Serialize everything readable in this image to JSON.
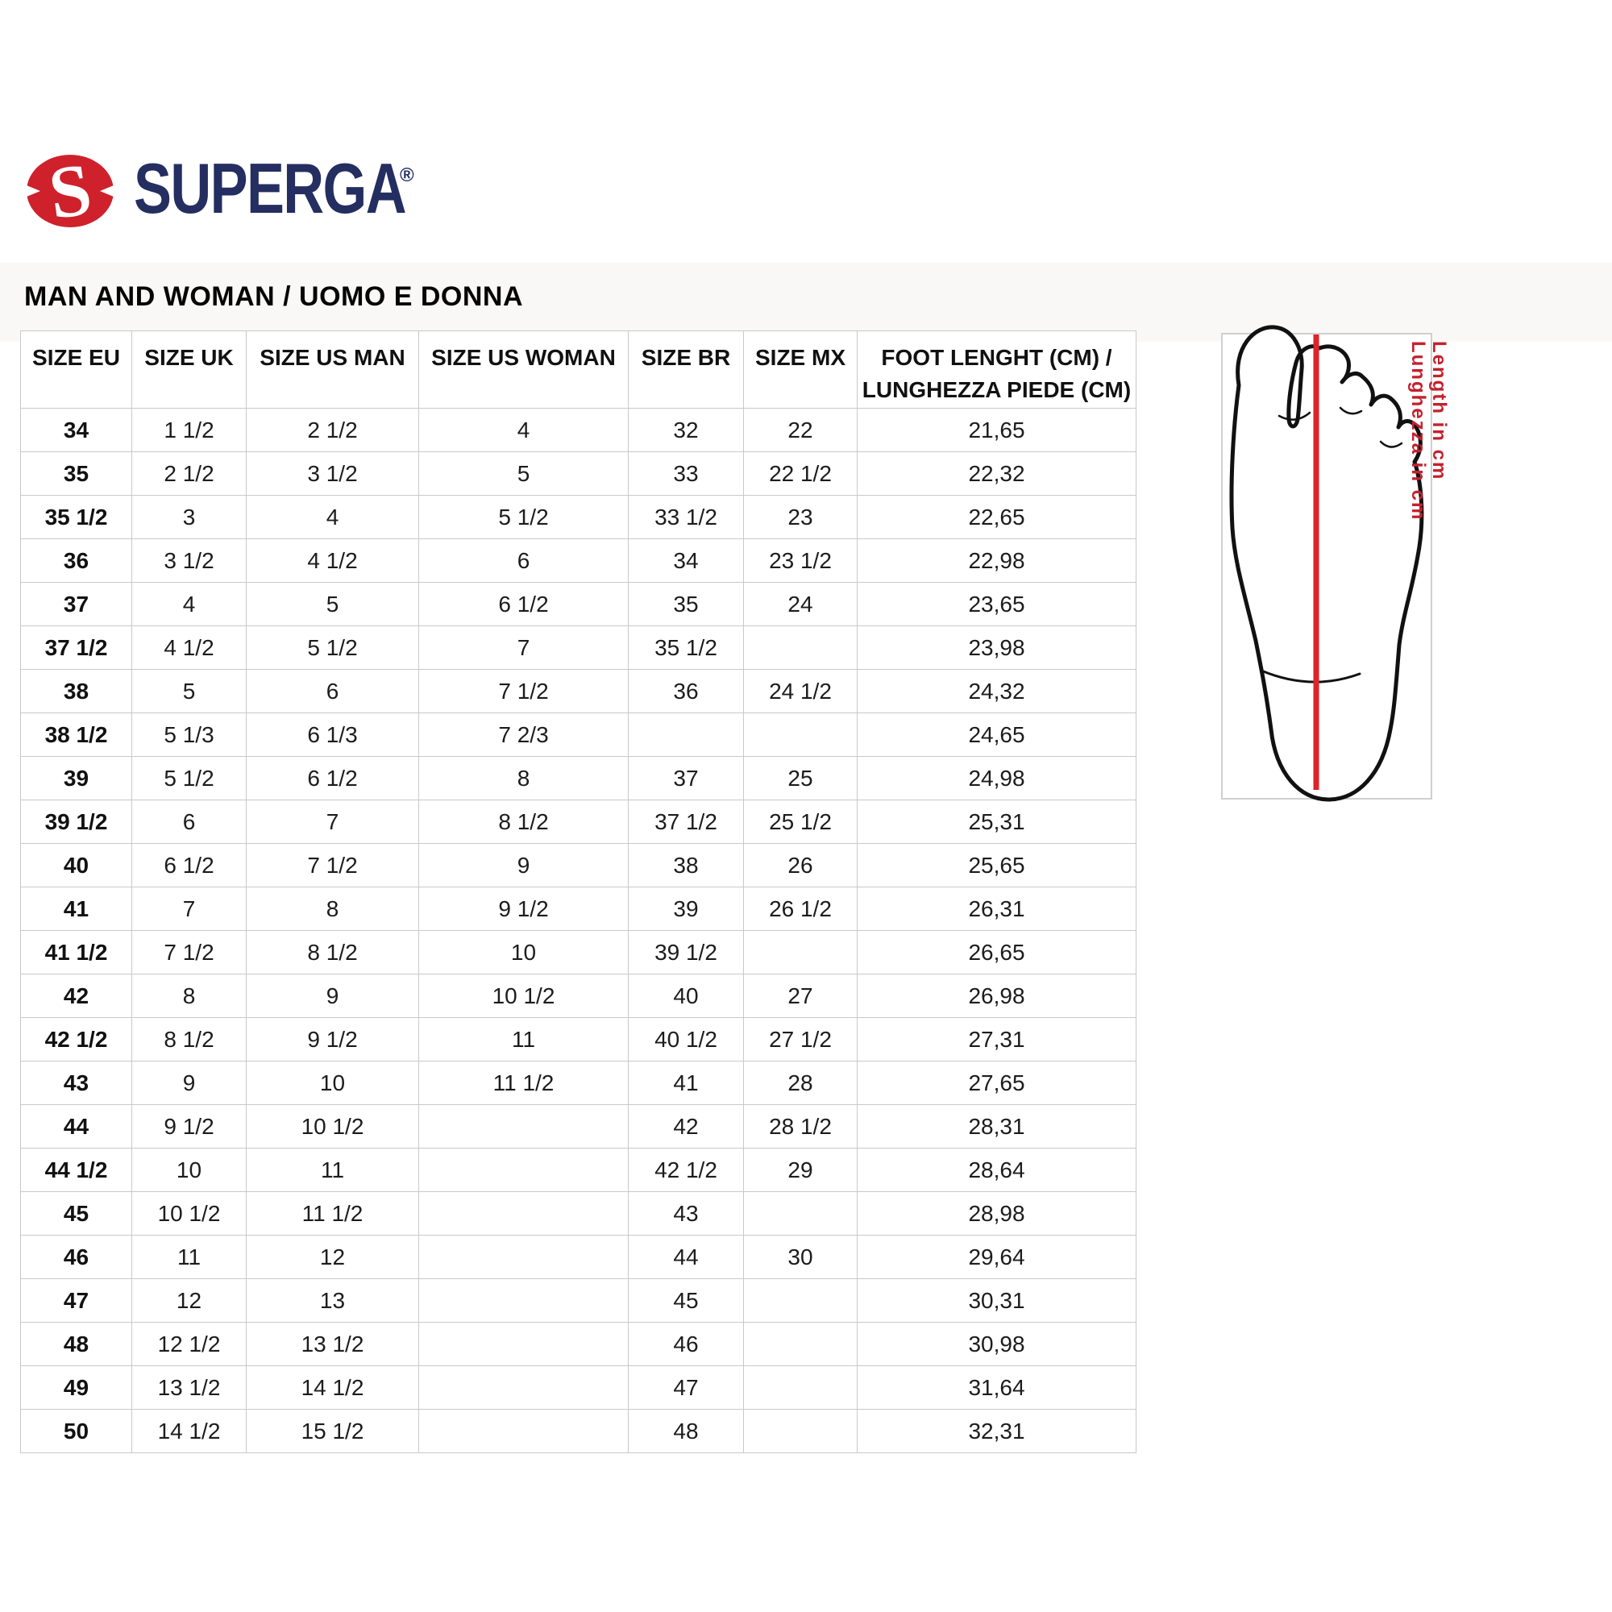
{
  "brand": {
    "name": "SUPERGA",
    "registered_mark": "®",
    "logo_icon": "superga-s-mark-icon",
    "navy": "#242e60",
    "red": "#cf212b"
  },
  "heading": {
    "title": "MAN AND WOMAN / UOMO E DONNA"
  },
  "size_table": {
    "columns": [
      "SIZE EU",
      "SIZE UK",
      "SIZE US MAN",
      "SIZE US WOMAN",
      "SIZE BR",
      "SIZE MX"
    ],
    "foot_length_column": {
      "line1": "FOOT LENGHT (CM) /",
      "line2": "LUNGHEZZA PIEDE (CM)"
    },
    "rows": [
      [
        "34",
        "1 1/2",
        "2 1/2",
        "4",
        "32",
        "22",
        "21,65"
      ],
      [
        "35",
        "2 1/2",
        "3 1/2",
        "5",
        "33",
        "22 1/2",
        "22,32"
      ],
      [
        "35 1/2",
        "3",
        "4",
        "5 1/2",
        "33 1/2",
        "23",
        "22,65"
      ],
      [
        "36",
        "3 1/2",
        "4 1/2",
        "6",
        "34",
        "23 1/2",
        "22,98"
      ],
      [
        "37",
        "4",
        "5",
        "6 1/2",
        "35",
        "24",
        "23,65"
      ],
      [
        "37 1/2",
        "4 1/2",
        "5 1/2",
        "7",
        "35 1/2",
        "",
        "23,98"
      ],
      [
        "38",
        "5",
        "6",
        "7 1/2",
        "36",
        "24 1/2",
        "24,32"
      ],
      [
        "38 1/2",
        "5 1/3",
        "6 1/3",
        "7 2/3",
        "",
        "",
        "24,65"
      ],
      [
        "39",
        "5 1/2",
        "6 1/2",
        "8",
        "37",
        "25",
        "24,98"
      ],
      [
        "39 1/2",
        "6",
        "7",
        "8 1/2",
        "37 1/2",
        "25 1/2",
        "25,31"
      ],
      [
        "40",
        "6 1/2",
        "7 1/2",
        "9",
        "38",
        "26",
        "25,65"
      ],
      [
        "41",
        "7",
        "8",
        "9 1/2",
        "39",
        "26 1/2",
        "26,31"
      ],
      [
        "41 1/2",
        "7 1/2",
        "8 1/2",
        "10",
        "39 1/2",
        "",
        "26,65"
      ],
      [
        "42",
        "8",
        "9",
        "10 1/2",
        "40",
        "27",
        "26,98"
      ],
      [
        "42 1/2",
        "8 1/2",
        "9 1/2",
        "11",
        "40 1/2",
        "27 1/2",
        "27,31"
      ],
      [
        "43",
        "9",
        "10",
        "11 1/2",
        "41",
        "28",
        "27,65"
      ],
      [
        "44",
        "9 1/2",
        "10 1/2",
        "",
        "42",
        "28 1/2",
        "28,31"
      ],
      [
        "44 1/2",
        "10",
        "11",
        "",
        "42 1/2",
        "29",
        "28,64"
      ],
      [
        "45",
        "10 1/2",
        "11 1/2",
        "",
        "43",
        "",
        "28,98"
      ],
      [
        "46",
        "11",
        "12",
        "",
        "44",
        "30",
        "29,64"
      ],
      [
        "47",
        "12",
        "13",
        "",
        "45",
        "",
        "30,31"
      ],
      [
        "48",
        "12 1/2",
        "13 1/2",
        "",
        "46",
        "",
        "30,98"
      ],
      [
        "49",
        "13 1/2",
        "14 1/2",
        "",
        "47",
        "",
        "31,64"
      ],
      [
        "50",
        "14 1/2",
        "15 1/2",
        "",
        "48",
        "",
        "32,31"
      ]
    ]
  },
  "foot_figure": {
    "icon": "foot-outline-icon",
    "label_en": "Length in cm",
    "label_it": "Lunghezza in cm",
    "measure_line_color": "#e02229"
  },
  "colors": {
    "table_border": "#c9c9c9",
    "heading_band": "#f9f8f6",
    "label_red": "#c4212e",
    "text": "#1c1c1c"
  }
}
